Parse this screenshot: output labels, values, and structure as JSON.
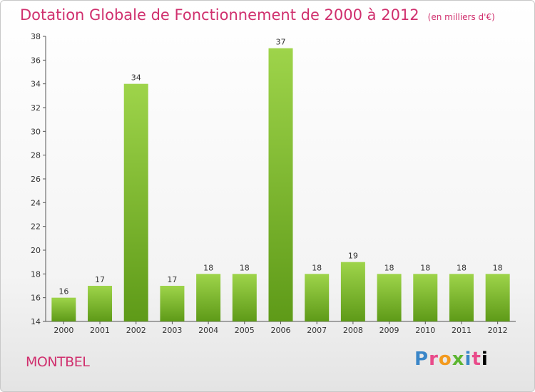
{
  "title": "Dotation Globale de Fonctionnement de 2000 à 2012",
  "subtitle": "(en milliers d'€)",
  "place": "MONTBEL",
  "logo": "Proxiti",
  "colors": {
    "title": "#d0306e",
    "bar_light": "#9ed44a",
    "bar_dark": "#5e9a18"
  },
  "chart_data": {
    "type": "bar",
    "title": "Dotation Globale de Fonctionnement de 2000 à 2012",
    "subtitle": "(en milliers d'€)",
    "categories": [
      "2000",
      "2001",
      "2002",
      "2003",
      "2004",
      "2005",
      "2006",
      "2007",
      "2008",
      "2009",
      "2010",
      "2011",
      "2012"
    ],
    "values": [
      16,
      17,
      34,
      17,
      18,
      18,
      37,
      18,
      19,
      18,
      18,
      18,
      18
    ],
    "xlabel": "",
    "ylabel": "",
    "ylim": [
      14,
      38
    ],
    "yticks": [
      14,
      16,
      18,
      20,
      22,
      24,
      26,
      28,
      30,
      32,
      34,
      36,
      38
    ],
    "grid": false,
    "legend": "none"
  }
}
